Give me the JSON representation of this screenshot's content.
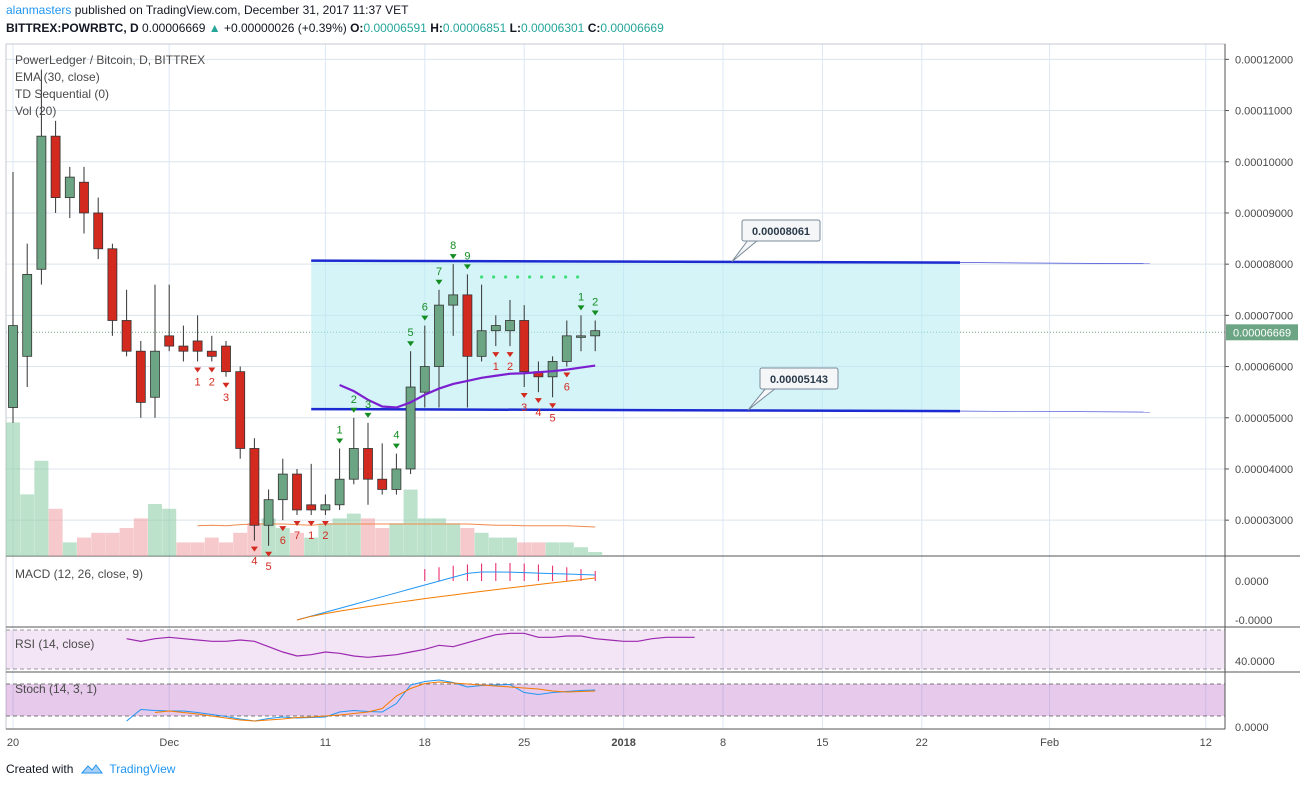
{
  "header": {
    "user": "alanmasters",
    "published_text": "published on TradingView.com, December 31, 2017 11:37 VET",
    "symbol": "BITTREX:POWRBTC, D",
    "last": "0.00006669",
    "change": "+0.00000026 (+0.39%)",
    "o_label": "O:",
    "o": "0.00006591",
    "h_label": "H:",
    "h": "0.00006851",
    "l_label": "L:",
    "l": "0.00006301",
    "c_label": "C:",
    "c": "0.00006669"
  },
  "legend": {
    "title": "PowerLedger / Bitcoin, D, BITTREX",
    "ema": "EMA (30, close)",
    "td": "TD Sequential (0)",
    "vol": "Vol (20)",
    "macd": "MACD (12, 26, close, 9)",
    "rsi": "RSI (14, close)",
    "stoch": "Stoch (14, 3, 1)"
  },
  "footer": {
    "created_with": "Created with",
    "brand": "TradingView"
  },
  "colors": {
    "up": "#6ba583",
    "down": "#d32a20",
    "box": "#b2ebf2",
    "line": "#1c2bd1",
    "ema": "#7b1fd0",
    "macd": "#2196f3",
    "signal": "#f57c00",
    "rsi": "#9c27b0"
  },
  "chart_data": {
    "type": "candlestick",
    "title": "PowerLedger / Bitcoin, D, BITTREX",
    "y_range": [
      2.3e-05,
      0.000123
    ],
    "price_ticks": [
      "0.00012000",
      "0.00011000",
      "0.00010000",
      "0.00009000",
      "0.00008000",
      "0.00007000",
      "0.00006000",
      "0.00005000",
      "0.00004000",
      "0.00003000"
    ],
    "price_tick_values": [
      0.00012,
      0.00011,
      0.0001,
      9e-05,
      8e-05,
      7e-05,
      6e-05,
      5e-05,
      4e-05,
      3e-05
    ],
    "current_price_label": "0.00006669",
    "current_price": 6.669e-05,
    "x_labels": [
      "20",
      "Dec",
      "11",
      "18",
      "25",
      "2018",
      "8",
      "15",
      "22",
      "Feb",
      "12"
    ],
    "x_label_days": [
      0,
      11,
      22,
      29,
      36,
      43,
      50,
      57,
      64,
      73,
      84
    ],
    "candles": [
      {
        "o": 5.2,
        "h": 9.8,
        "l": 4.9,
        "c": 6.8
      },
      {
        "o": 6.2,
        "h": 8.4,
        "l": 5.6,
        "c": 7.8
      },
      {
        "o": 7.9,
        "h": 11.8,
        "l": 7.6,
        "c": 10.5
      },
      {
        "o": 10.5,
        "h": 10.8,
        "l": 9.0,
        "c": 9.3
      },
      {
        "o": 9.3,
        "h": 9.9,
        "l": 8.9,
        "c": 9.7
      },
      {
        "o": 9.6,
        "h": 9.9,
        "l": 8.6,
        "c": 9.0
      },
      {
        "o": 9.0,
        "h": 9.3,
        "l": 8.1,
        "c": 8.3
      },
      {
        "o": 8.3,
        "h": 8.4,
        "l": 6.6,
        "c": 6.9
      },
      {
        "o": 6.9,
        "h": 7.5,
        "l": 6.2,
        "c": 6.3
      },
      {
        "o": 6.3,
        "h": 6.5,
        "l": 5.0,
        "c": 5.3
      },
      {
        "o": 5.4,
        "h": 7.6,
        "l": 5.0,
        "c": 6.3
      },
      {
        "o": 6.6,
        "h": 7.6,
        "l": 6.3,
        "c": 6.4
      },
      {
        "o": 6.4,
        "h": 6.8,
        "l": 6.1,
        "c": 6.3
      },
      {
        "o": 6.5,
        "h": 7.0,
        "l": 6.1,
        "c": 6.3
      },
      {
        "o": 6.3,
        "h": 6.6,
        "l": 6.1,
        "c": 6.2
      },
      {
        "o": 6.4,
        "h": 6.5,
        "l": 5.8,
        "c": 5.9
      },
      {
        "o": 5.9,
        "h": 6.0,
        "l": 4.2,
        "c": 4.4
      },
      {
        "o": 4.4,
        "h": 4.6,
        "l": 2.6,
        "c": 2.9
      },
      {
        "o": 2.9,
        "h": 3.6,
        "l": 2.5,
        "c": 3.4
      },
      {
        "o": 3.4,
        "h": 4.2,
        "l": 3.0,
        "c": 3.9
      },
      {
        "o": 3.9,
        "h": 4.0,
        "l": 3.1,
        "c": 3.2
      },
      {
        "o": 3.3,
        "h": 4.1,
        "l": 3.1,
        "c": 3.2
      },
      {
        "o": 3.2,
        "h": 3.5,
        "l": 3.1,
        "c": 3.3
      },
      {
        "o": 3.3,
        "h": 4.4,
        "l": 3.2,
        "c": 3.8
      },
      {
        "o": 3.8,
        "h": 5.0,
        "l": 3.7,
        "c": 4.4
      },
      {
        "o": 4.4,
        "h": 4.9,
        "l": 3.3,
        "c": 3.8
      },
      {
        "o": 3.8,
        "h": 4.5,
        "l": 3.5,
        "c": 3.6
      },
      {
        "o": 3.6,
        "h": 4.3,
        "l": 3.5,
        "c": 4.0
      },
      {
        "o": 4.0,
        "h": 6.3,
        "l": 3.9,
        "c": 5.6
      },
      {
        "o": 5.5,
        "h": 6.8,
        "l": 5.2,
        "c": 6.0
      },
      {
        "o": 6.0,
        "h": 7.5,
        "l": 5.2,
        "c": 7.2
      },
      {
        "o": 7.2,
        "h": 8.0,
        "l": 6.6,
        "c": 7.4
      },
      {
        "o": 7.4,
        "h": 7.8,
        "l": 5.2,
        "c": 6.2
      },
      {
        "o": 6.2,
        "h": 7.6,
        "l": 6.1,
        "c": 6.7
      },
      {
        "o": 6.7,
        "h": 7.0,
        "l": 6.4,
        "c": 6.8
      },
      {
        "o": 6.7,
        "h": 7.3,
        "l": 6.4,
        "c": 6.9
      },
      {
        "o": 6.9,
        "h": 7.2,
        "l": 5.6,
        "c": 5.9
      },
      {
        "o": 5.9,
        "h": 6.1,
        "l": 5.5,
        "c": 5.8
      },
      {
        "o": 5.8,
        "h": 6.2,
        "l": 5.4,
        "c": 6.1
      },
      {
        "o": 6.1,
        "h": 6.9,
        "l": 6.0,
        "c": 6.6
      },
      {
        "o": 6.6,
        "h": 7.0,
        "l": 6.3,
        "c": 6.6
      },
      {
        "o": 6.6,
        "h": 6.9,
        "l": 6.3,
        "c": 6.7
      }
    ],
    "candle_units": "x 0.00001 BTC",
    "ema30": [
      [
        23,
        5.64
      ],
      [
        24,
        5.52
      ],
      [
        25,
        5.35
      ],
      [
        26,
        5.22
      ],
      [
        27,
        5.2
      ],
      [
        28,
        5.3
      ],
      [
        29,
        5.45
      ],
      [
        30,
        5.57
      ],
      [
        31,
        5.66
      ],
      [
        32,
        5.72
      ],
      [
        33,
        5.78
      ],
      [
        34,
        5.82
      ],
      [
        35,
        5.86
      ],
      [
        36,
        5.87
      ],
      [
        37,
        5.89
      ],
      [
        38,
        5.91
      ],
      [
        39,
        5.94
      ],
      [
        40,
        5.98
      ],
      [
        41,
        6.02
      ]
    ],
    "volume": [
      4.6,
      3.1,
      3.8,
      2.8,
      2.1,
      2.2,
      2.3,
      2.3,
      2.4,
      2.6,
      2.9,
      2.8,
      2.1,
      2.1,
      2.2,
      2.1,
      2.3,
      2.5,
      2.6,
      2.4,
      2.3,
      2.2,
      2.5,
      2.6,
      2.7,
      2.6,
      2.4,
      2.5,
      3.2,
      2.6,
      2.6,
      2.5,
      2.4,
      2.3,
      2.2,
      2.2,
      2.1,
      2.1,
      2.1,
      2.1,
      2.0,
      1.9
    ],
    "volume_up": [
      true,
      true,
      true,
      false,
      true,
      false,
      false,
      false,
      false,
      false,
      true,
      true,
      false,
      false,
      false,
      false,
      false,
      false,
      true,
      true,
      false,
      true,
      true,
      true,
      true,
      false,
      false,
      true,
      true,
      true,
      true,
      true,
      false,
      true,
      true,
      true,
      false,
      false,
      true,
      true,
      true,
      true
    ],
    "td_setup_buy": [
      {
        "i": 13,
        "n": "1"
      },
      {
        "i": 14,
        "n": "2"
      },
      {
        "i": 15,
        "n": "3"
      },
      {
        "i": 17,
        "n": "4"
      },
      {
        "i": 18,
        "n": "5"
      },
      {
        "i": 19,
        "n": "6"
      },
      {
        "i": 20,
        "n": "7"
      },
      {
        "i": 21,
        "n": "1"
      },
      {
        "i": 22,
        "n": "2"
      },
      {
        "i": 34,
        "n": "1"
      },
      {
        "i": 35,
        "n": "2"
      },
      {
        "i": 36,
        "n": "3"
      },
      {
        "i": 37,
        "n": "4"
      },
      {
        "i": 38,
        "n": "5"
      },
      {
        "i": 39,
        "n": "6"
      }
    ],
    "td_setup_sell": [
      {
        "i": 23,
        "n": "1"
      },
      {
        "i": 24,
        "n": "2"
      },
      {
        "i": 25,
        "n": "3"
      },
      {
        "i": 27,
        "n": "4"
      },
      {
        "i": 28,
        "n": "5"
      },
      {
        "i": 29,
        "n": "6"
      },
      {
        "i": 30,
        "n": "7"
      },
      {
        "i": 31,
        "n": "8"
      },
      {
        "i": 32,
        "n": "9"
      },
      {
        "i": 40,
        "n": "1"
      },
      {
        "i": 41,
        "n": "2"
      }
    ],
    "annotations": [
      {
        "label": "0.00008061",
        "value": 8.061e-05
      },
      {
        "label": "0.00005143",
        "value": 5.143e-05
      }
    ],
    "range_box": {
      "top": 8.05e-05,
      "bottom": 5.15e-05
    },
    "macd_ticks": [
      "0.0000",
      "-0.0000"
    ],
    "rsi_ticks": [
      "40.0000"
    ],
    "stoch_ticks": [
      "0.0000"
    ],
    "rsi_line": [
      62,
      60,
      62,
      63,
      62,
      61,
      60,
      60,
      61,
      60,
      56,
      52,
      49,
      50,
      52,
      51,
      49,
      48,
      49,
      50,
      52,
      54,
      57,
      56,
      59,
      62,
      65,
      66,
      66,
      63,
      63,
      64,
      64,
      62,
      61,
      60,
      60,
      62,
      63,
      63,
      63
    ],
    "stoch_k": [
      10,
      33,
      31,
      30,
      30,
      27,
      23,
      19,
      14,
      10,
      15,
      18,
      16,
      17,
      18,
      28,
      31,
      29,
      28,
      45,
      82,
      89,
      92,
      87,
      78,
      81,
      82,
      83,
      67,
      63,
      67,
      69,
      71,
      72
    ],
    "stoch_d": [
      27,
      30,
      27,
      24,
      20,
      16,
      12,
      10,
      12,
      14,
      17,
      18,
      20,
      22,
      25,
      28,
      35,
      60,
      75,
      85,
      88,
      86,
      84,
      82,
      80,
      78,
      76,
      74,
      70,
      68,
      69,
      70
    ]
  }
}
